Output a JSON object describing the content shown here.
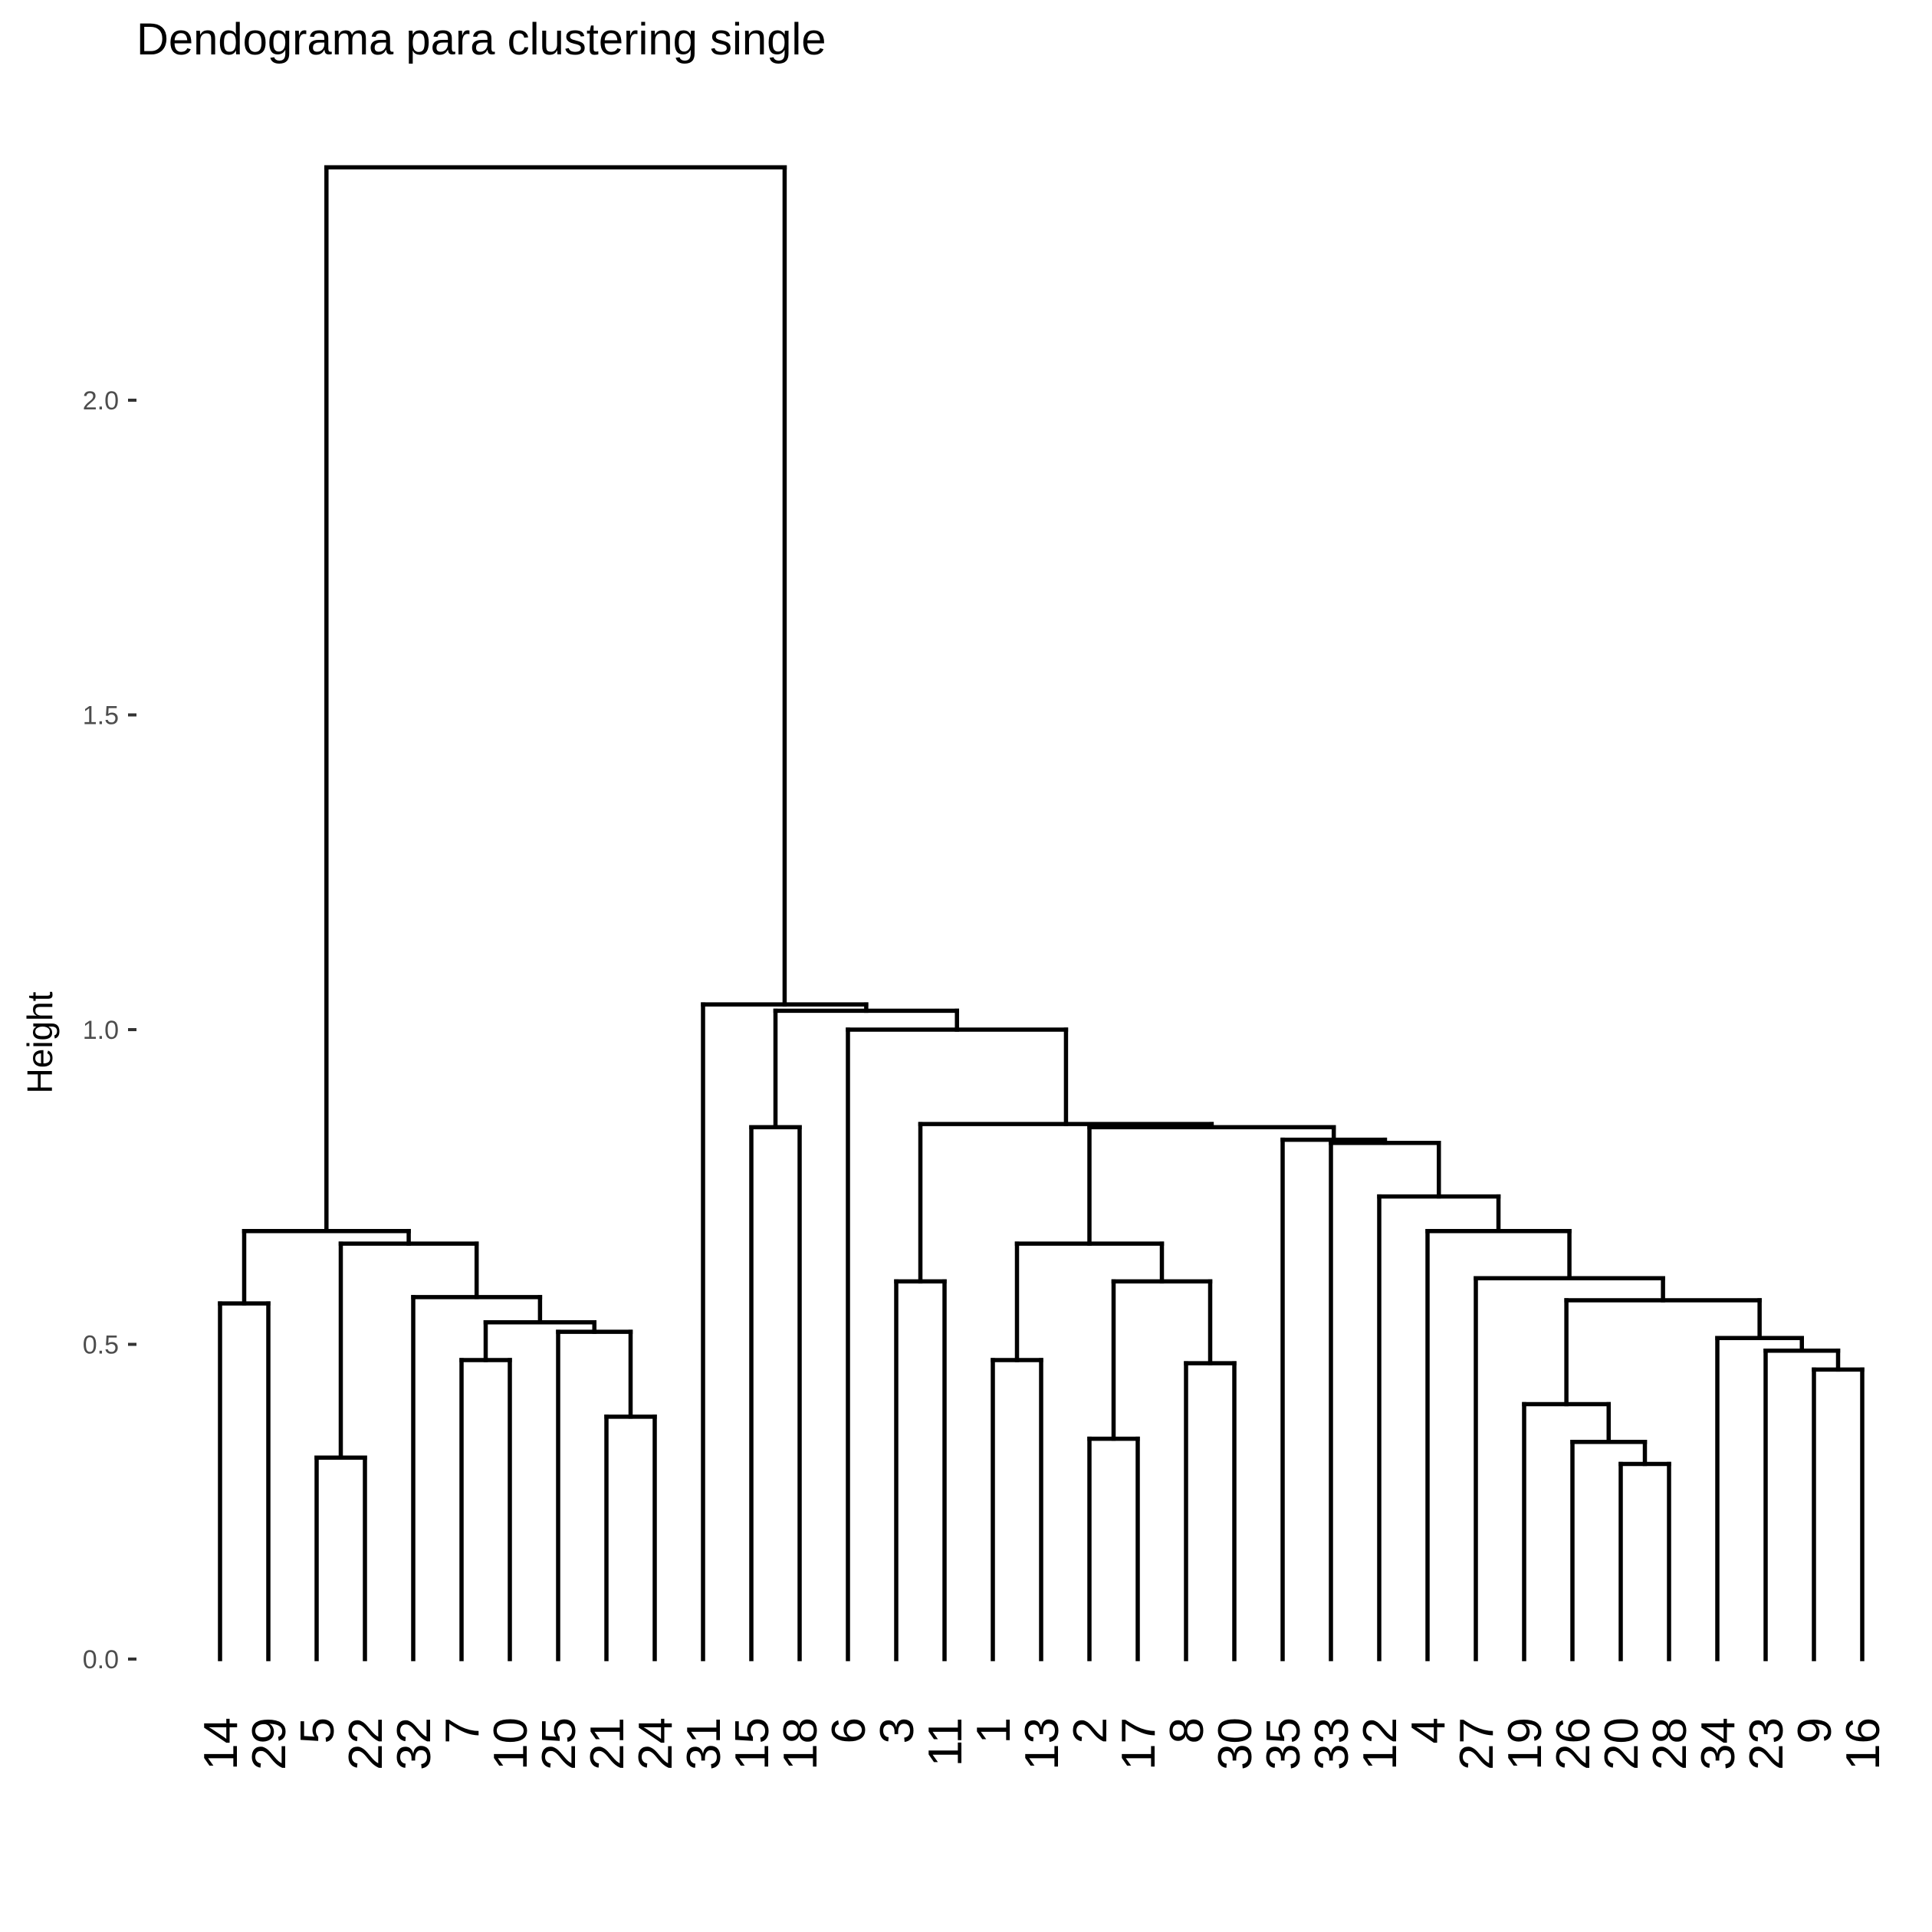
{
  "chart_data": {
    "type": "dendrogram",
    "title": "Dendograma para clustering single",
    "xlabel": "",
    "ylabel": "Height",
    "ylim": [
      0,
      2.4
    ],
    "yticks": [
      {
        "value": 0.0,
        "label": "0.0"
      },
      {
        "value": 0.5,
        "label": "0.5"
      },
      {
        "value": 1.0,
        "label": "1.0"
      },
      {
        "value": 1.5,
        "label": "1.5"
      },
      {
        "value": 2.0,
        "label": "2.0"
      }
    ],
    "leaves": [
      "14",
      "29",
      "5",
      "22",
      "32",
      "7",
      "10",
      "25",
      "21",
      "24",
      "31",
      "15",
      "18",
      "6",
      "3",
      "11",
      "1",
      "13",
      "2",
      "17",
      "8",
      "30",
      "35",
      "33",
      "12",
      "4",
      "27",
      "19",
      "26",
      "20",
      "28",
      "34",
      "23",
      "9",
      "16"
    ],
    "merges": [
      {
        "a": "20",
        "b": "28",
        "height": 0.31
      },
      {
        "a": "5",
        "b": "22",
        "height": 0.32
      },
      {
        "a": "26",
        "b": "20+28",
        "height": 0.345
      },
      {
        "a": "2",
        "b": "17",
        "height": 0.35
      },
      {
        "a": "21",
        "b": "24",
        "height": 0.385
      },
      {
        "a": "19",
        "b": "26+20+28",
        "height": 0.405
      },
      {
        "a": "9",
        "b": "16",
        "height": 0.46
      },
      {
        "a": "8",
        "b": "30",
        "height": 0.47
      },
      {
        "a": "1",
        "b": "13",
        "height": 0.475
      },
      {
        "a": "7",
        "b": "10",
        "height": 0.475
      },
      {
        "a": "23",
        "b": "9+16",
        "height": 0.49
      },
      {
        "a": "34",
        "b": "23+9+16",
        "height": 0.51
      },
      {
        "a": "25",
        "b": "21+24",
        "height": 0.52
      },
      {
        "a": "7+10",
        "b": "25+21+24",
        "height": 0.535
      },
      {
        "a": "14",
        "b": "29",
        "height": 0.565
      },
      {
        "a": "19+26+20+28",
        "b": "34+23+9+16",
        "height": 0.57
      },
      {
        "a": "32",
        "b": "7+10+25+21+24",
        "height": 0.575
      },
      {
        "a": "2+17",
        "b": "8+30",
        "height": 0.6
      },
      {
        "a": "3",
        "b": "11",
        "height": 0.6
      },
      {
        "a": "27",
        "b": "19..16",
        "height": 0.605
      },
      {
        "a": "5+22",
        "b": "32+7+10+25+21+24",
        "height": 0.66
      },
      {
        "a": "1+13",
        "b": "2+17+8+30",
        "height": 0.66
      },
      {
        "a": "14+29",
        "b": "5+22+32+7+10+25+21+24",
        "height": 0.68
      },
      {
        "a": "4",
        "b": "27..16",
        "height": 0.68
      },
      {
        "a": "12",
        "b": "4..16",
        "height": 0.735
      },
      {
        "a": "33",
        "b": "12..16",
        "height": 0.82
      },
      {
        "a": "35",
        "b": "33..16",
        "height": 0.825
      },
      {
        "a": "1+13+2+17+8+30",
        "b": "35..16",
        "height": 0.845
      },
      {
        "a": "15",
        "b": "18",
        "height": 0.845
      },
      {
        "a": "3+11",
        "b": "1..16",
        "height": 0.85
      },
      {
        "a": "6",
        "b": "3..16",
        "height": 1.0
      },
      {
        "a": "15+18",
        "b": "6..16",
        "height": 1.03
      },
      {
        "a": "31",
        "b": "15..16",
        "height": 1.04
      },
      {
        "a": "14..24",
        "b": "31..16",
        "height": 2.37
      }
    ]
  }
}
